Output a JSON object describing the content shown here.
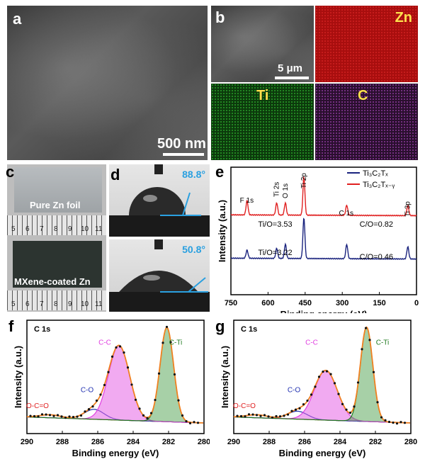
{
  "panels": {
    "a": {
      "label": "a",
      "scale": "500 nm"
    },
    "b": {
      "label": "b",
      "scale": "5 μm",
      "maps": [
        "Zn",
        "Ti",
        "C"
      ]
    },
    "c": {
      "label": "c",
      "top_text": "Pure Zn foil",
      "bottom_text": "MXene-coated Zn",
      "ruler_ticks": [
        "5",
        "6",
        "7",
        "8",
        "9",
        "10",
        "11"
      ]
    },
    "d": {
      "label": "d",
      "angle_top": "88.8°",
      "angle_bottom": "50.8°"
    },
    "e": {
      "label": "e"
    },
    "f": {
      "label": "f"
    },
    "g": {
      "label": "g"
    }
  },
  "colors": {
    "zn_map": "#b01010",
    "ti_map": "#1e8a1e",
    "c_map": "#6a2a7a",
    "navy": "#1a237e",
    "red": "#e02020",
    "magenta": "#e040e0",
    "green": "#1e7a1e",
    "blue": "#2030b0",
    "orange": "#f08020"
  },
  "chart_data": [
    {
      "id": "e",
      "type": "line",
      "xlabel": "Binding energy (eV)",
      "ylabel": "Intensity (a.u.)",
      "xlim": [
        750,
        0
      ],
      "xticks": [
        750,
        600,
        450,
        300,
        150,
        0
      ],
      "legend": [
        "Ti₃C₂Tₓ",
        "Ti₃C₂Tₓ₋ᵧ"
      ],
      "legend_position": "top-right",
      "peak_labels": [
        "F 1s",
        "Ti 2s",
        "O 1s",
        "Ti 2p",
        "C 1s",
        "Ti 3p"
      ],
      "annotations": [
        "Ti/O=3.53",
        "C/O=0.82",
        "Ti/O=3.22",
        "C/O=0.46"
      ],
      "series": [
        {
          "name": "Ti₃C₂Tₓ",
          "color": "#1a237e",
          "peaks": [
            [
              685,
              0.2
            ],
            [
              565,
              0.25
            ],
            [
              530,
              0.35
            ],
            [
              455,
              1.0
            ],
            [
              282,
              0.35
            ],
            [
              35,
              0.3
            ]
          ],
          "base": 0.28
        },
        {
          "name": "Ti₃C₂Tₓ₋ᵧ",
          "color": "#e02020",
          "peaks": [
            [
              685,
              0.35
            ],
            [
              565,
              0.3
            ],
            [
              530,
              0.3
            ],
            [
              455,
              0.95
            ],
            [
              282,
              0.25
            ],
            [
              35,
              0.25
            ]
          ],
          "base": 0.62
        }
      ]
    },
    {
      "id": "f",
      "type": "line",
      "title": "C 1s",
      "xlabel": "Binding energy (eV)",
      "ylabel": "Intensity (a.u.)",
      "xlim": [
        290,
        280
      ],
      "xticks": [
        290,
        288,
        286,
        284,
        282,
        280
      ],
      "components": [
        {
          "name": "O-C=O",
          "center": 288.7,
          "height": 0.03,
          "width": 0.6
        },
        {
          "name": "C-O",
          "center": 286.2,
          "height": 0.1,
          "width": 0.55
        },
        {
          "name": "C-C",
          "center": 284.8,
          "height": 0.75,
          "width": 0.6
        },
        {
          "name": "C-Ti",
          "center": 282.1,
          "height": 0.95,
          "width": 0.38
        }
      ]
    },
    {
      "id": "g",
      "type": "line",
      "title": "C 1s",
      "xlabel": "Binding energy (eV)",
      "ylabel": "Intensity (a.u.)",
      "xlim": [
        290,
        280
      ],
      "xticks": [
        290,
        288,
        286,
        284,
        282,
        280
      ],
      "components": [
        {
          "name": "O-C=O",
          "center": 288.7,
          "height": 0.03,
          "width": 0.6
        },
        {
          "name": "C-O",
          "center": 286.4,
          "height": 0.08,
          "width": 0.55
        },
        {
          "name": "C-C",
          "center": 284.8,
          "height": 0.5,
          "width": 0.65
        },
        {
          "name": "C-Ti",
          "center": 282.5,
          "height": 0.95,
          "width": 0.35
        }
      ]
    }
  ]
}
